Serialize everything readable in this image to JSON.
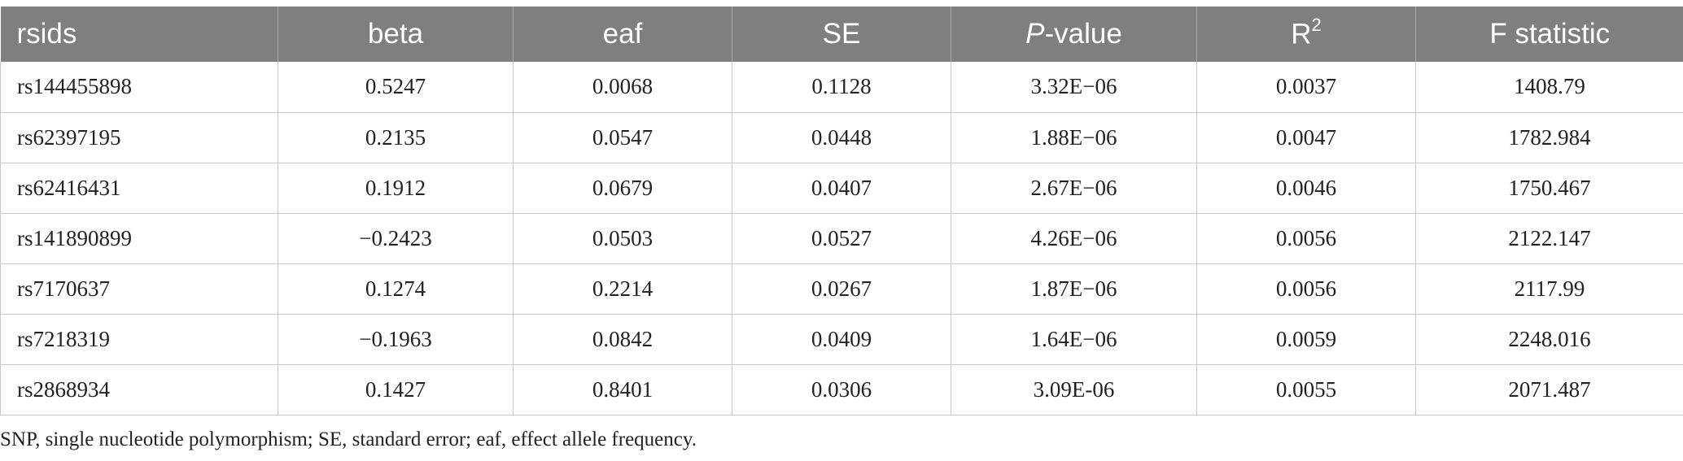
{
  "table": {
    "headers": [
      {
        "text": "rsids"
      },
      {
        "text": "beta"
      },
      {
        "text": "eaf"
      },
      {
        "text": "SE"
      },
      {
        "italic": "P",
        "text": "-value"
      },
      {
        "text": "R",
        "sup": "2"
      },
      {
        "text": "F statistic"
      }
    ],
    "rows": [
      [
        "rs144455898",
        "0.5247",
        "0.0068",
        "0.1128",
        "3.32E−06",
        "0.0037",
        "1408.79"
      ],
      [
        "rs62397195",
        "0.2135",
        "0.0547",
        "0.0448",
        "1.88E−06",
        "0.0047",
        "1782.984"
      ],
      [
        "rs62416431",
        "0.1912",
        "0.0679",
        "0.0407",
        "2.67E−06",
        "0.0046",
        "1750.467"
      ],
      [
        "rs141890899",
        "−0.2423",
        "0.0503",
        "0.0527",
        "4.26E−06",
        "0.0056",
        "2122.147"
      ],
      [
        "rs7170637",
        "0.1274",
        "0.2214",
        "0.0267",
        "1.87E−06",
        "0.0056",
        "2117.99"
      ],
      [
        "rs7218319",
        "−0.1963",
        "0.0842",
        "0.0409",
        "1.64E−06",
        "0.0059",
        "2248.016"
      ],
      [
        "rs2868934",
        "0.1427",
        "0.8401",
        "0.0306",
        "3.09E-06",
        "0.0055",
        "2071.487"
      ]
    ]
  },
  "footnote": "SNP, single nucleotide polymorphism; SE, standard error; eaf, effect allele frequency."
}
